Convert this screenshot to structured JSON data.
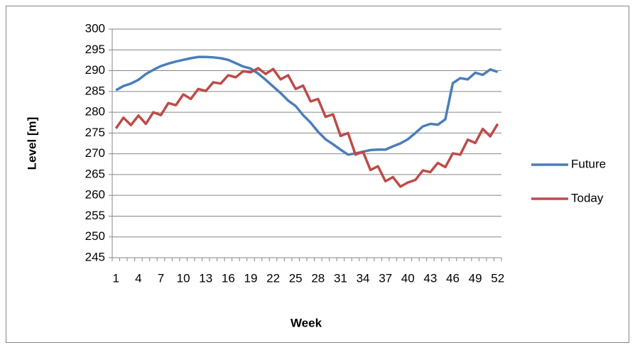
{
  "chart_data": {
    "type": "line",
    "x_label": "Week",
    "y_label": "Level [m]",
    "categories": [
      "1",
      null,
      null,
      "4",
      null,
      null,
      "7",
      null,
      null,
      "10",
      null,
      null,
      "13",
      null,
      null,
      "16",
      null,
      null,
      "19",
      null,
      null,
      "22",
      null,
      null,
      "25",
      null,
      null,
      "28",
      null,
      null,
      "31",
      null,
      null,
      "34",
      null,
      null,
      "37",
      null,
      null,
      "40",
      null,
      null,
      "43",
      null,
      null,
      "46",
      null,
      null,
      "49",
      null,
      null,
      "52"
    ],
    "series": [
      {
        "name": "Future",
        "color": "#4a7ebb",
        "values": [
          285.3,
          286.3,
          286.9,
          287.8,
          289.2,
          290.2,
          291.1,
          291.7,
          292.2,
          292.6,
          293.0,
          293.3,
          293.3,
          293.2,
          293.0,
          292.6,
          291.8,
          291.0,
          290.5,
          289.3,
          287.8,
          286.2,
          284.6,
          282.8,
          281.5,
          279.3,
          277.5,
          275.3,
          273.5,
          272.3,
          271.0,
          269.8,
          270.1,
          270.5,
          270.9,
          271.0,
          271.0,
          271.8,
          272.5,
          273.5,
          275.0,
          276.6,
          277.2,
          277.0,
          278.3,
          287.0,
          288.2,
          287.9,
          289.5,
          289.0,
          290.3,
          289.7
        ]
      },
      {
        "name": "Today",
        "color": "#be4b48",
        "values": [
          276.1,
          278.7,
          276.9,
          279.2,
          277.2,
          280.0,
          279.3,
          282.2,
          281.7,
          284.3,
          283.2,
          285.6,
          285.1,
          287.2,
          286.9,
          288.9,
          288.4,
          289.9,
          289.6,
          290.6,
          289.2,
          290.4,
          287.9,
          288.9,
          285.6,
          286.4,
          282.6,
          283.2,
          278.9,
          279.5,
          274.3,
          275.0,
          269.8,
          270.5,
          266.1,
          267.0,
          263.4,
          264.4,
          262.1,
          263.1,
          263.7,
          266.0,
          265.6,
          267.8,
          266.8,
          270.1,
          269.8,
          273.4,
          272.6,
          276.0,
          274.2,
          277.2
        ]
      }
    ],
    "ylim": [
      245,
      300
    ],
    "yticks": [
      245,
      250,
      255,
      260,
      265,
      270,
      275,
      280,
      285,
      290,
      295,
      300
    ],
    "grid": true,
    "legend": "right"
  }
}
